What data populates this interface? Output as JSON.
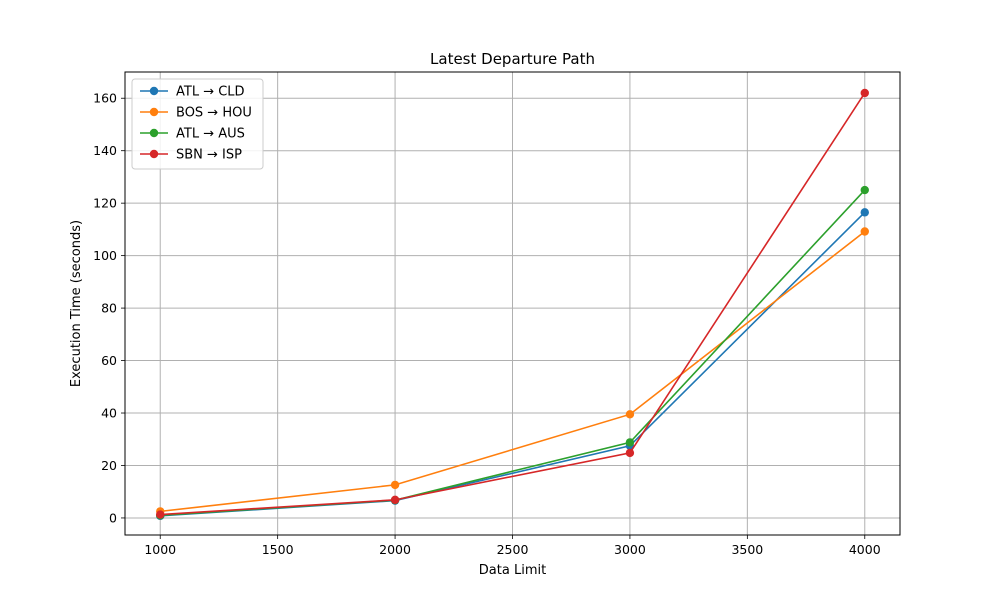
{
  "chart_data": {
    "type": "line",
    "title": "Latest Departure Path",
    "xlabel": "Data Limit",
    "ylabel": "Execution Time (seconds)",
    "x": [
      1000,
      2000,
      3000,
      4000
    ],
    "xlim": [
      850,
      4150
    ],
    "ylim": [
      -6.5,
      170
    ],
    "xticks": [
      1000,
      1500,
      2000,
      2500,
      3000,
      3500,
      4000
    ],
    "yticks": [
      0,
      20,
      40,
      60,
      80,
      100,
      120,
      140,
      160
    ],
    "grid": true,
    "legend_position": "top-left",
    "series": [
      {
        "name": "ATL → CLD",
        "color": "#1f77b4",
        "values": [
          0.8,
          6.6,
          27.5,
          116.5
        ]
      },
      {
        "name": "BOS → HOU",
        "color": "#ff7f0e",
        "values": [
          2.5,
          12.6,
          39.5,
          109.2
        ]
      },
      {
        "name": "ATL → AUS",
        "color": "#2ca02c",
        "values": [
          1.0,
          6.8,
          28.8,
          125.0
        ]
      },
      {
        "name": "SBN → ISP",
        "color": "#d62728",
        "values": [
          1.3,
          6.9,
          24.8,
          162.0
        ]
      }
    ]
  }
}
